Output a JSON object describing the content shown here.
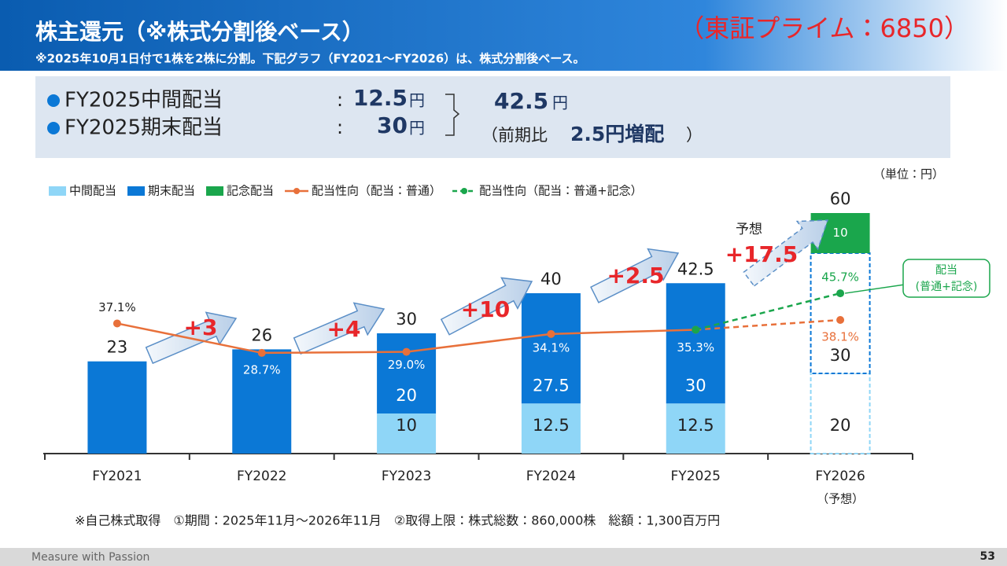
{
  "header": {
    "title": "株主還元（※株式分割後ベース）",
    "note": "※2025年10月1日付で1株を2株に分割。下記グラフ（FY2021～FY2026）は、株式分割後ベース。",
    "ticker": "（東証プライム：6850）"
  },
  "dividend_box": {
    "rows": [
      {
        "label": "FY2025中間配当",
        "colon": ":",
        "amount": 12.5,
        "unit": "円"
      },
      {
        "label": "FY2025期末配当",
        "colon": ":",
        "amount": 30,
        "unit": "円"
      }
    ],
    "total": {
      "amount": 42.5,
      "unit": "円"
    },
    "comparison": {
      "open": "（前期比",
      "amount": "2.5円増配",
      "close": "）"
    }
  },
  "chart_data": {
    "type": "bar",
    "stacked": true,
    "unit_label": "（単位：円）",
    "categories": [
      "FY2021",
      "FY2022",
      "FY2023",
      "FY2024",
      "FY2025",
      "FY2026"
    ],
    "category_notes": [
      null,
      null,
      null,
      null,
      null,
      "（予想）"
    ],
    "ylim": [
      0,
      70
    ],
    "y2lim": [
      0,
      80
    ],
    "series": [
      {
        "name": "中間配当",
        "color": "#8fd6f7",
        "values": [
          null,
          null,
          10,
          12.5,
          12.5,
          20
        ]
      },
      {
        "name": "期末配当",
        "color": "#0b78d6",
        "values": [
          23,
          26,
          20,
          27.5,
          30,
          30
        ]
      },
      {
        "name": "記念配当",
        "color": "#1aa64c",
        "values": [
          null,
          null,
          null,
          null,
          null,
          10
        ]
      },
      {
        "name": "配当性向（配当：普通）",
        "type": "line",
        "axis": "y2",
        "color": "#e8703a",
        "values": [
          37.1,
          28.7,
          29.0,
          34.1,
          35.3,
          38.1
        ],
        "value_labels": [
          "37.1%",
          "28.7%",
          "29.0%",
          "34.1%",
          "35.3%",
          "38.1%"
        ]
      },
      {
        "name": "配当性向（配当：普通+記念）",
        "type": "line",
        "axis": "y2",
        "color": "#1aa64c",
        "dashed": true,
        "values": [
          null,
          null,
          null,
          null,
          35.3,
          45.7
        ],
        "value_labels": [
          null,
          null,
          null,
          null,
          null,
          "45.7%"
        ]
      }
    ],
    "totals": [
      23,
      26,
      30,
      40,
      42.5,
      60
    ],
    "increments": [
      "+3",
      "+4",
      "+10",
      "+2.5",
      "+17.5"
    ],
    "forecast_label": "予想",
    "callout": [
      "配当",
      "(普通+記念)"
    ]
  },
  "footnote": "※自己株式取得　①期間：2025年11月～2026年11月　②取得上限：株式総数：860,000株　総額：1,300百万円",
  "footer": {
    "brand": "Measure with Passion",
    "page": "53"
  }
}
